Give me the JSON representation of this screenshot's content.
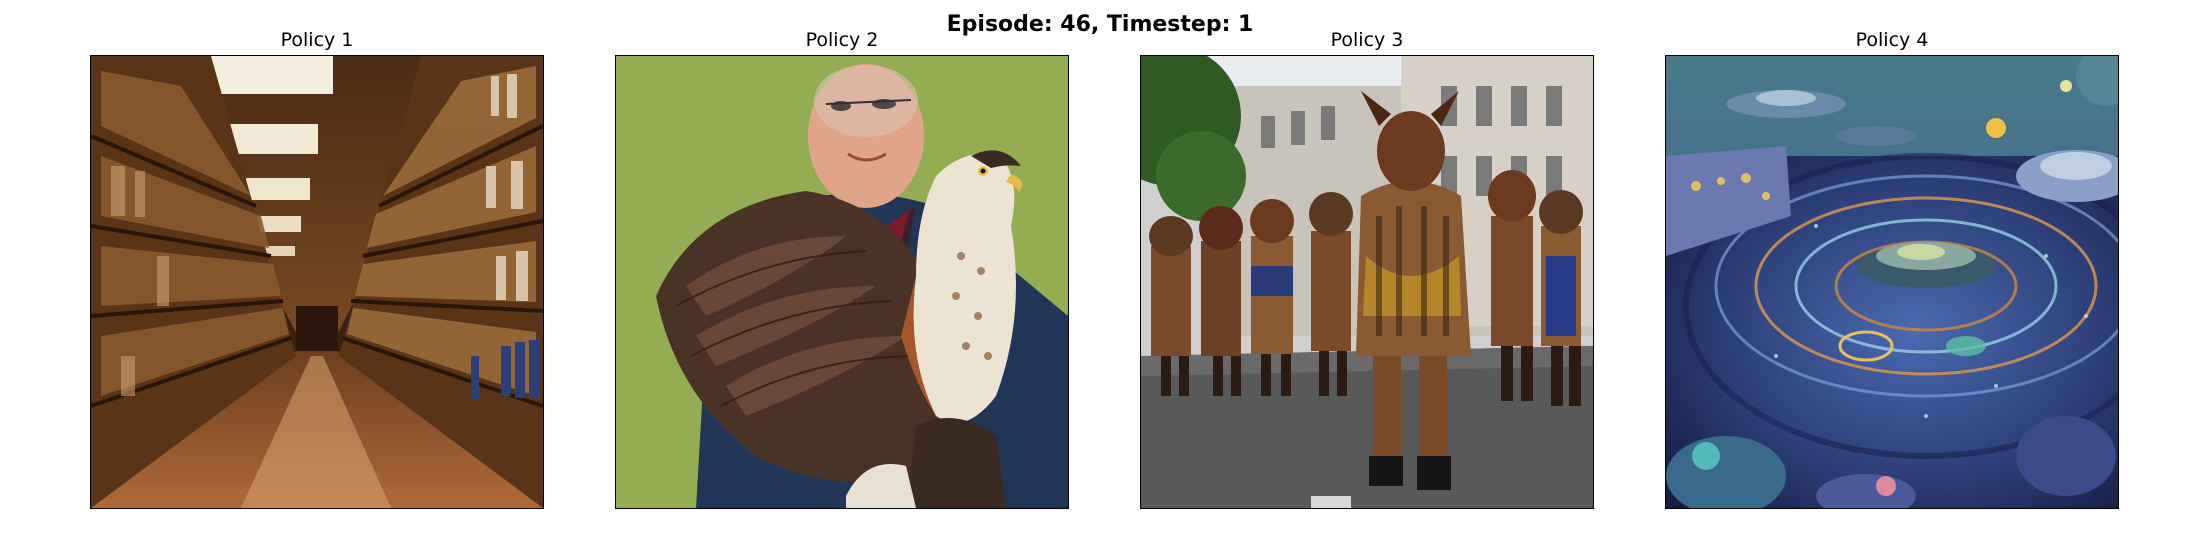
{
  "figure": {
    "title": "Episode: 46, Timestep: 1"
  },
  "panels": [
    {
      "title": "Policy 1",
      "image": "library-aisle-bookshelves"
    },
    {
      "title": "Policy 2",
      "image": "man-holding-hawks"
    },
    {
      "title": "Policy 3",
      "image": "parade-costumed-marchers"
    },
    {
      "title": "Policy 4",
      "image": "sci-fi-spaceship-scene"
    }
  ]
}
